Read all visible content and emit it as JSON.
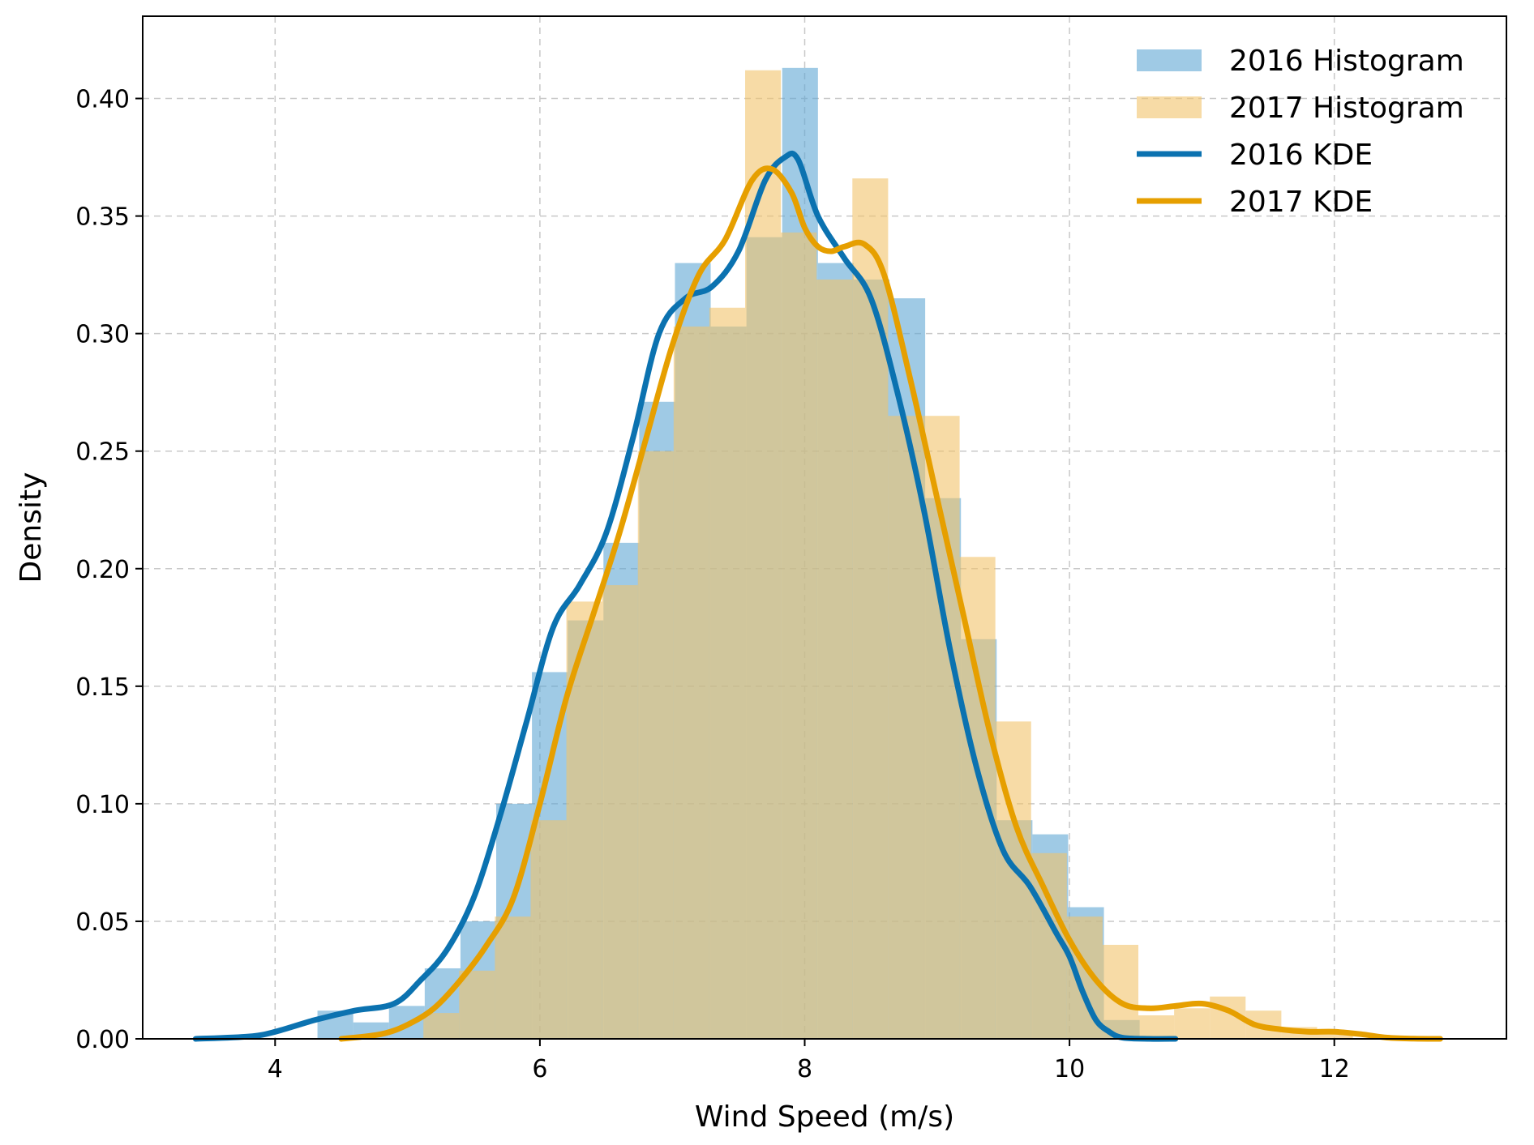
{
  "chart_data": {
    "type": "histogram",
    "xlabel": "Wind Speed (m/s)",
    "ylabel": "Density",
    "xlim": [
      3,
      13.3
    ],
    "ylim": [
      0,
      0.435
    ],
    "x_ticks": [
      "4",
      "6",
      "8",
      "10",
      "12"
    ],
    "y_ticks": [
      "0.00",
      "0.05",
      "0.10",
      "0.15",
      "0.20",
      "0.25",
      "0.30",
      "0.35",
      "0.40"
    ],
    "grid": true,
    "legend_position": "top-right",
    "histograms": [
      {
        "name": "2016 Histogram",
        "color": "#5fa6d4",
        "opacity": 0.6,
        "bins": [
          {
            "x0": 4.32,
            "x1": 4.59,
            "y": 0.012
          },
          {
            "x0": 4.59,
            "x1": 4.86,
            "y": 0.007
          },
          {
            "x0": 4.86,
            "x1": 5.13,
            "y": 0.014
          },
          {
            "x0": 5.13,
            "x1": 5.4,
            "y": 0.03
          },
          {
            "x0": 5.4,
            "x1": 5.67,
            "y": 0.05
          },
          {
            "x0": 5.67,
            "x1": 5.94,
            "y": 0.1
          },
          {
            "x0": 5.94,
            "x1": 6.21,
            "y": 0.156
          },
          {
            "x0": 6.21,
            "x1": 6.48,
            "y": 0.178
          },
          {
            "x0": 6.48,
            "x1": 6.75,
            "y": 0.211
          },
          {
            "x0": 6.75,
            "x1": 7.02,
            "y": 0.271
          },
          {
            "x0": 7.02,
            "x1": 7.29,
            "y": 0.33
          },
          {
            "x0": 7.29,
            "x1": 7.56,
            "y": 0.303
          },
          {
            "x0": 7.56,
            "x1": 7.83,
            "y": 0.341
          },
          {
            "x0": 7.83,
            "x1": 8.1,
            "y": 0.413
          },
          {
            "x0": 8.1,
            "x1": 8.37,
            "y": 0.33
          },
          {
            "x0": 8.37,
            "x1": 8.64,
            "y": 0.323
          },
          {
            "x0": 8.64,
            "x1": 8.91,
            "y": 0.315
          },
          {
            "x0": 8.91,
            "x1": 9.18,
            "y": 0.23
          },
          {
            "x0": 9.18,
            "x1": 9.45,
            "y": 0.17
          },
          {
            "x0": 9.45,
            "x1": 9.72,
            "y": 0.093
          },
          {
            "x0": 9.72,
            "x1": 9.99,
            "y": 0.087
          },
          {
            "x0": 9.99,
            "x1": 10.26,
            "y": 0.056
          },
          {
            "x0": 10.26,
            "x1": 10.53,
            "y": 0.008
          },
          {
            "x0": 10.53,
            "x1": 10.8,
            "y": 0.001
          }
        ]
      },
      {
        "name": "2017 Histogram",
        "color": "#f2c36b",
        "opacity": 0.6,
        "bins": [
          {
            "x0": 5.12,
            "x1": 5.39,
            "y": 0.011
          },
          {
            "x0": 5.39,
            "x1": 5.66,
            "y": 0.029
          },
          {
            "x0": 5.66,
            "x1": 5.93,
            "y": 0.052
          },
          {
            "x0": 5.93,
            "x1": 6.2,
            "y": 0.093
          },
          {
            "x0": 6.2,
            "x1": 6.47,
            "y": 0.186
          },
          {
            "x0": 6.47,
            "x1": 6.74,
            "y": 0.193
          },
          {
            "x0": 6.74,
            "x1": 7.01,
            "y": 0.25
          },
          {
            "x0": 7.01,
            "x1": 7.28,
            "y": 0.303
          },
          {
            "x0": 7.28,
            "x1": 7.55,
            "y": 0.311
          },
          {
            "x0": 7.55,
            "x1": 7.82,
            "y": 0.412
          },
          {
            "x0": 7.82,
            "x1": 8.09,
            "y": 0.343
          },
          {
            "x0": 8.09,
            "x1": 8.36,
            "y": 0.323
          },
          {
            "x0": 8.36,
            "x1": 8.63,
            "y": 0.366
          },
          {
            "x0": 8.63,
            "x1": 8.9,
            "y": 0.265
          },
          {
            "x0": 8.9,
            "x1": 9.17,
            "y": 0.265
          },
          {
            "x0": 9.17,
            "x1": 9.44,
            "y": 0.205
          },
          {
            "x0": 9.44,
            "x1": 9.71,
            "y": 0.135
          },
          {
            "x0": 9.71,
            "x1": 9.98,
            "y": 0.079
          },
          {
            "x0": 9.98,
            "x1": 10.25,
            "y": 0.052
          },
          {
            "x0": 10.25,
            "x1": 10.52,
            "y": 0.04
          },
          {
            "x0": 10.52,
            "x1": 10.79,
            "y": 0.01
          },
          {
            "x0": 10.79,
            "x1": 11.06,
            "y": 0.013
          },
          {
            "x0": 11.06,
            "x1": 11.33,
            "y": 0.018
          },
          {
            "x0": 11.33,
            "x1": 11.6,
            "y": 0.012
          },
          {
            "x0": 11.6,
            "x1": 11.87,
            "y": 0.005
          },
          {
            "x0": 11.87,
            "x1": 12.14,
            "y": 0.003
          }
        ]
      }
    ],
    "series": [
      {
        "name": "2016 KDE",
        "color": "#0b72b0",
        "x": [
          3.4,
          3.8,
          4.0,
          4.3,
          4.6,
          4.9,
          5.1,
          5.3,
          5.5,
          5.7,
          5.9,
          6.1,
          6.3,
          6.5,
          6.7,
          6.9,
          7.1,
          7.3,
          7.5,
          7.7,
          7.85,
          7.95,
          8.1,
          8.3,
          8.5,
          8.7,
          8.9,
          9.1,
          9.3,
          9.5,
          9.7,
          9.9,
          10.0,
          10.1,
          10.2,
          10.3,
          10.4,
          10.6,
          10.8
        ],
        "y": [
          0.0,
          0.001,
          0.003,
          0.008,
          0.012,
          0.015,
          0.025,
          0.038,
          0.06,
          0.095,
          0.135,
          0.175,
          0.193,
          0.215,
          0.255,
          0.3,
          0.315,
          0.32,
          0.335,
          0.365,
          0.375,
          0.374,
          0.35,
          0.332,
          0.315,
          0.275,
          0.225,
          0.165,
          0.115,
          0.08,
          0.065,
          0.045,
          0.035,
          0.02,
          0.008,
          0.003,
          0.0005,
          0.0,
          0.0
        ]
      },
      {
        "name": "2017 KDE",
        "color": "#e69f00",
        "x": [
          4.5,
          4.8,
          5.0,
          5.2,
          5.4,
          5.6,
          5.8,
          6.0,
          6.2,
          6.4,
          6.6,
          6.8,
          7.0,
          7.2,
          7.4,
          7.6,
          7.75,
          7.9,
          8.0,
          8.1,
          8.2,
          8.3,
          8.45,
          8.6,
          8.8,
          9.0,
          9.2,
          9.4,
          9.6,
          9.8,
          10.0,
          10.2,
          10.4,
          10.6,
          10.8,
          11.0,
          11.2,
          11.4,
          11.6,
          11.8,
          12.0,
          12.2,
          12.4,
          12.6,
          12.8
        ],
        "y": [
          0.0,
          0.002,
          0.006,
          0.013,
          0.025,
          0.04,
          0.06,
          0.1,
          0.145,
          0.18,
          0.215,
          0.255,
          0.295,
          0.325,
          0.34,
          0.365,
          0.37,
          0.36,
          0.345,
          0.337,
          0.335,
          0.337,
          0.338,
          0.325,
          0.28,
          0.23,
          0.18,
          0.13,
          0.09,
          0.065,
          0.042,
          0.025,
          0.015,
          0.013,
          0.014,
          0.015,
          0.012,
          0.006,
          0.004,
          0.003,
          0.003,
          0.002,
          0.0005,
          0.0001,
          0.0
        ]
      }
    ]
  }
}
